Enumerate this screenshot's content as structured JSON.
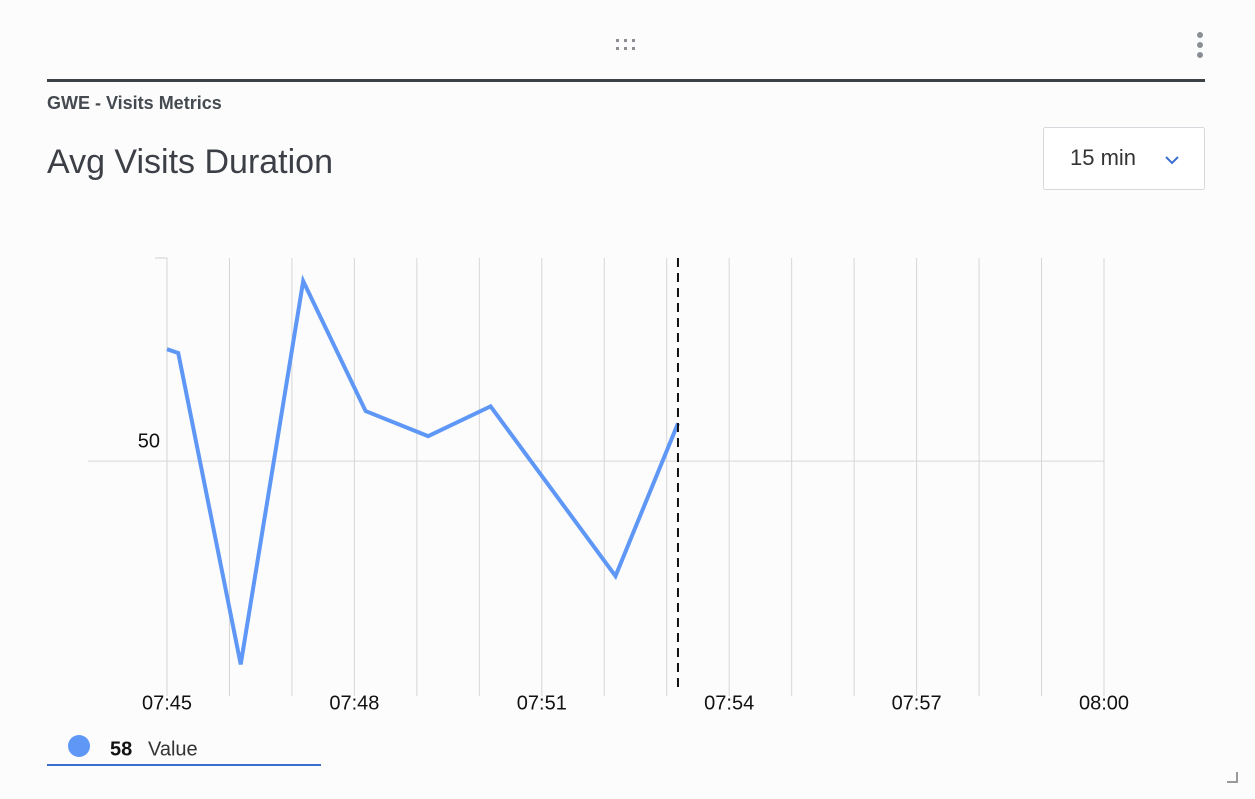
{
  "widget": {
    "category": "GWE - Visits Metrics",
    "time_range": "15 min"
  },
  "chart_data": {
    "type": "line",
    "title": "Avg Visits Duration",
    "x": [
      45,
      45.18,
      46.18,
      47.18,
      48.18,
      49.18,
      50.18,
      52.18,
      53.18
    ],
    "series": [
      {
        "name": "Value",
        "color": "#5e97f6",
        "values": [
          73.7,
          72.9,
          7,
          88.1,
          60.6,
          55.3,
          61.6,
          25.7,
          58
        ]
      }
    ],
    "xlim": [
      45,
      60
    ],
    "xticks": [
      {
        "value": 45,
        "label": "07:45"
      },
      {
        "value": 48,
        "label": "07:48"
      },
      {
        "value": 51,
        "label": "07:51"
      },
      {
        "value": 54,
        "label": "07:54"
      },
      {
        "value": 57,
        "label": "07:57"
      },
      {
        "value": 60,
        "label": "08:00"
      }
    ],
    "xminorticks": [
      46,
      47,
      49,
      50,
      52,
      53,
      55,
      56,
      58,
      59
    ],
    "ylim": [
      2,
      93
    ],
    "yticks": [
      50
    ],
    "grid": true
  }
}
